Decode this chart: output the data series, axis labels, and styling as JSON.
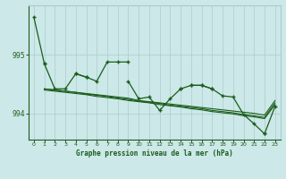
{
  "background_color": "#cce8e8",
  "grid_color": "#aacccc",
  "line_color": "#1a5c1a",
  "title": "Graphe pression niveau de la mer (hPa)",
  "xlim": [
    -0.5,
    23.5
  ],
  "ylim": [
    993.55,
    995.85
  ],
  "yticks": [
    994,
    995
  ],
  "xticks": [
    0,
    1,
    2,
    3,
    4,
    5,
    6,
    7,
    8,
    9,
    10,
    11,
    12,
    13,
    14,
    15,
    16,
    17,
    18,
    19,
    20,
    21,
    22,
    23
  ],
  "lines": [
    {
      "x": [
        0,
        1
      ],
      "y": [
        995.65,
        994.85
      ],
      "marker": true
    },
    {
      "x": [
        1,
        2,
        3,
        4,
        5
      ],
      "y": [
        994.85,
        994.42,
        994.42,
        994.68,
        994.62
      ],
      "marker": true
    },
    {
      "x": [
        4,
        5,
        6,
        7,
        8,
        9
      ],
      "y": [
        994.68,
        994.62,
        994.55,
        994.88,
        994.88,
        994.88
      ],
      "marker": true
    },
    {
      "x": [
        9,
        10,
        11,
        12,
        13,
        14
      ],
      "y": [
        994.55,
        994.25,
        994.28,
        994.05,
        994.25,
        994.42
      ],
      "marker": true
    },
    {
      "x": [
        14,
        15,
        16,
        17
      ],
      "y": [
        994.42,
        994.48,
        994.48,
        994.42
      ],
      "marker": true
    },
    {
      "x": [
        15,
        16,
        17,
        18,
        19,
        20,
        21,
        22
      ],
      "y": [
        994.48,
        994.48,
        994.42,
        994.3,
        994.28,
        993.98,
        993.82,
        993.65
      ],
      "marker": true
    },
    {
      "x": [
        22,
        23
      ],
      "y": [
        993.65,
        994.12
      ],
      "marker": true
    },
    {
      "x": [
        1,
        2,
        3,
        4,
        5,
        6,
        7,
        8,
        9,
        10,
        11,
        12,
        13,
        14,
        15,
        16,
        17,
        18,
        19,
        20,
        21,
        22,
        23
      ],
      "y": [
        994.42,
        994.4,
        994.38,
        994.36,
        994.34,
        994.32,
        994.3,
        994.28,
        994.26,
        994.22,
        994.2,
        994.18,
        994.16,
        994.14,
        994.12,
        994.1,
        994.08,
        994.06,
        994.04,
        994.02,
        994.0,
        993.97,
        994.22
      ],
      "marker": false
    },
    {
      "x": [
        1,
        2,
        3,
        4,
        5,
        6,
        7,
        8,
        9,
        10,
        11,
        12,
        13,
        14,
        15,
        16,
        17,
        18,
        19,
        20,
        21,
        22,
        23
      ],
      "y": [
        994.42,
        994.4,
        994.38,
        994.36,
        994.33,
        994.31,
        994.29,
        994.26,
        994.24,
        994.21,
        994.19,
        994.17,
        994.14,
        994.12,
        994.1,
        994.08,
        994.05,
        994.03,
        994.01,
        993.98,
        993.96,
        993.93,
        994.18
      ],
      "marker": false
    },
    {
      "x": [
        1,
        2,
        3,
        4,
        5,
        6,
        7,
        8,
        9,
        10,
        11,
        12,
        13,
        14,
        15,
        16,
        17,
        18,
        19,
        20,
        21,
        22,
        23
      ],
      "y": [
        994.4,
        994.38,
        994.36,
        994.34,
        994.32,
        994.29,
        994.27,
        994.25,
        994.22,
        994.2,
        994.18,
        994.15,
        994.13,
        994.11,
        994.08,
        994.06,
        994.03,
        994.01,
        993.99,
        993.96,
        993.94,
        993.91,
        994.15
      ],
      "marker": false
    }
  ]
}
